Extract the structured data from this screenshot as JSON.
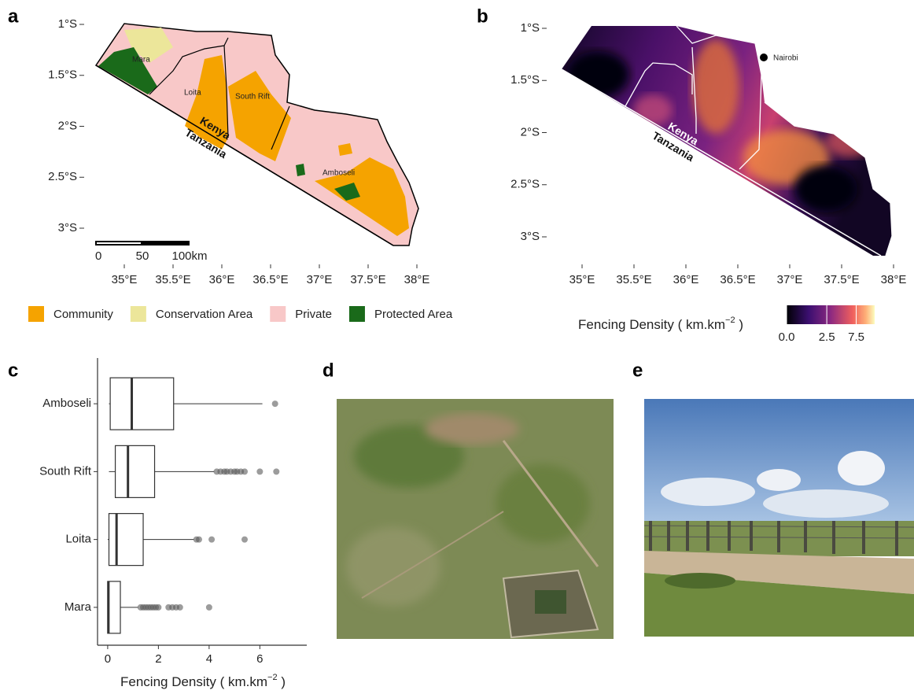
{
  "panel_labels": [
    "a",
    "b",
    "c",
    "d",
    "e"
  ],
  "map_a": {
    "yticks": [
      {
        "value": -1,
        "label": "1°S"
      },
      {
        "value": -1.5,
        "label": "1.5°S"
      },
      {
        "value": -2,
        "label": "2°S"
      },
      {
        "value": -2.5,
        "label": "2.5°S"
      },
      {
        "value": -3,
        "label": "3°S"
      }
    ],
    "xticks": [
      {
        "value": 35,
        "label": "35°E"
      },
      {
        "value": 35.5,
        "label": "35.5°E"
      },
      {
        "value": 36,
        "label": "36°E"
      },
      {
        "value": 36.5,
        "label": "36.5°E"
      },
      {
        "value": 37,
        "label": "37°E"
      },
      {
        "value": 37.5,
        "label": "37.5°E"
      },
      {
        "value": 38,
        "label": "38°E"
      }
    ],
    "regions": [
      "Mara",
      "Loita",
      "South Rift",
      "Amboseli"
    ],
    "countries": [
      "Kenya",
      "Tanzania"
    ],
    "scalebar": [
      0,
      50,
      {
        "value": 100,
        "label": "100km"
      }
    ],
    "legend": [
      {
        "name": "Community",
        "color": "#f5a300"
      },
      {
        "name": "Conservation Area",
        "color": "#ece69a"
      },
      {
        "name": "Private",
        "color": "#f8c8c8"
      },
      {
        "name": "Protected Area",
        "color": "#1a6a1a"
      }
    ]
  },
  "map_b": {
    "yticks": [
      {
        "value": -1,
        "label": "1°S"
      },
      {
        "value": -1.5,
        "label": "1.5°S"
      },
      {
        "value": -2,
        "label": "2°S"
      },
      {
        "value": -2.5,
        "label": "2.5°S"
      },
      {
        "value": -3,
        "label": "3°S"
      }
    ],
    "xticks": [
      {
        "value": 35,
        "label": "35°E"
      },
      {
        "value": 35.5,
        "label": "35.5°E"
      },
      {
        "value": 36,
        "label": "36°E"
      },
      {
        "value": 36.5,
        "label": "36.5°E"
      },
      {
        "value": 37,
        "label": "37°E"
      },
      {
        "value": 37.5,
        "label": "37.5°E"
      },
      {
        "value": 38,
        "label": "38°E"
      }
    ],
    "countries": [
      "Kenya",
      "Tanzania"
    ],
    "city": "Nairobi",
    "colorbar": {
      "title": [
        "Fencing Density ( km.km",
        "−2",
        " )"
      ],
      "lim": [
        0,
        12
      ],
      "scale": "sqrt",
      "ticks": [
        {
          "value": 0,
          "label": "0.0"
        },
        2.5,
        7.5
      ]
    }
  },
  "chart_data": {
    "type": "box",
    "orientation": "horizontal",
    "categories": [
      "Amboseli",
      "South Rift",
      "Loita",
      "Mara"
    ],
    "min": [
      0.05,
      0.05,
      0.0,
      0.0
    ],
    "q1": [
      0.1,
      0.3,
      0.05,
      0.0
    ],
    "median": [
      0.95,
      0.8,
      0.35,
      0.03
    ],
    "q3": [
      2.6,
      1.85,
      1.4,
      0.5
    ],
    "max": [
      6.1,
      4.2,
      3.4,
      1.2
    ],
    "outliers": [
      [
        6.6
      ],
      [
        4.3,
        4.45,
        4.6,
        4.7,
        4.85,
        5.0,
        5.1,
        5.25,
        5.4,
        6.0,
        6.65
      ],
      [
        3.5,
        3.6,
        4.1,
        5.4
      ],
      [
        1.3,
        1.4,
        1.5,
        1.6,
        1.7,
        1.8,
        1.9,
        2.0,
        2.4,
        2.55,
        2.7,
        2.85,
        4.0
      ]
    ],
    "xlim": [
      -0.4,
      7.85
    ],
    "xticks": [
      0,
      2,
      4,
      6
    ],
    "x_label": [
      "Fencing Density ( km.km",
      "−2",
      " )"
    ]
  }
}
